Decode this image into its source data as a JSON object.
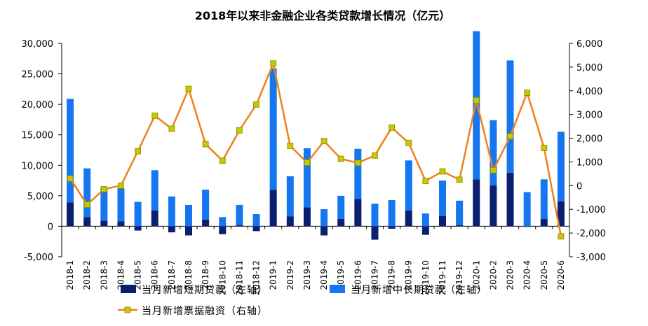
{
  "chart_data": {
    "type": "bar+line",
    "title": "2018年以来非金融企业各类贷款增长情况（亿元）",
    "categories": [
      "2018-1",
      "2018-2",
      "2018-3",
      "2018-4",
      "2018-5",
      "2018-6",
      "2018-7",
      "2018-8",
      "2018-9",
      "2018-10",
      "2018-11",
      "2018-12",
      "2019-1",
      "2019-2",
      "2019-3",
      "2019-4",
      "2019-5",
      "2019-6",
      "2019-7",
      "2019-8",
      "2019-9",
      "2019-10",
      "2019-11",
      "2019-12",
      "2020-1",
      "2020-2",
      "2020-3",
      "2020-4",
      "2020-5",
      "2020-6"
    ],
    "left_axis": {
      "ylim": [
        -5000,
        30000
      ],
      "ticks": [
        -5000,
        0,
        5000,
        10000,
        15000,
        20000,
        25000,
        30000
      ],
      "tick_labels": [
        "-5,000",
        "0",
        "5,000",
        "10,000",
        "15,000",
        "20,000",
        "25,000",
        "30,000"
      ]
    },
    "right_axis": {
      "ylim": [
        -3000,
        6000
      ],
      "ticks": [
        -3000,
        -2000,
        -1000,
        0,
        1000,
        2000,
        3000,
        4000,
        5000,
        6000
      ],
      "tick_labels": [
        "-3,000",
        "-2,000",
        "-1,000",
        "0",
        "1,000",
        "2,000",
        "3,000",
        "4,000",
        "5,000",
        "6,000"
      ]
    },
    "series": [
      {
        "name": "当月新增短期贷款（左轴）",
        "type": "bar",
        "axis": "left",
        "color": "#0a1f6e",
        "values": [
          3900,
          1500,
          900,
          800,
          -700,
          2600,
          -1000,
          -1500,
          1100,
          -1300,
          200,
          -800,
          6000,
          1600,
          3100,
          -1500,
          1200,
          4500,
          -2200,
          -400,
          2600,
          -1400,
          1700,
          200,
          7700,
          6700,
          8800,
          -100,
          1200,
          4100
        ]
      },
      {
        "name": "当月新增中长期贷款（左轴）",
        "type": "bar",
        "axis": "left",
        "color": "#1477f0",
        "values": [
          17000,
          8000,
          5400,
          5400,
          4000,
          6600,
          4900,
          3500,
          4900,
          1500,
          3300,
          2000,
          19900,
          6600,
          9700,
          2800,
          3800,
          8200,
          3700,
          4300,
          8200,
          2100,
          5800,
          4000,
          24300,
          10700,
          18400,
          5600,
          6500,
          11400
        ]
      },
      {
        "name": "当月新增票据融资（右轴）",
        "type": "line",
        "axis": "right",
        "color": "#f08019",
        "marker_color": "#c8c800",
        "values": [
          300,
          -800,
          -150,
          0,
          1450,
          2950,
          2400,
          4080,
          1750,
          1050,
          2330,
          3420,
          5150,
          1680,
          970,
          1880,
          1130,
          960,
          1270,
          2450,
          1800,
          200,
          600,
          250,
          3600,
          650,
          2080,
          3920,
          1590,
          -2140
        ]
      }
    ]
  }
}
